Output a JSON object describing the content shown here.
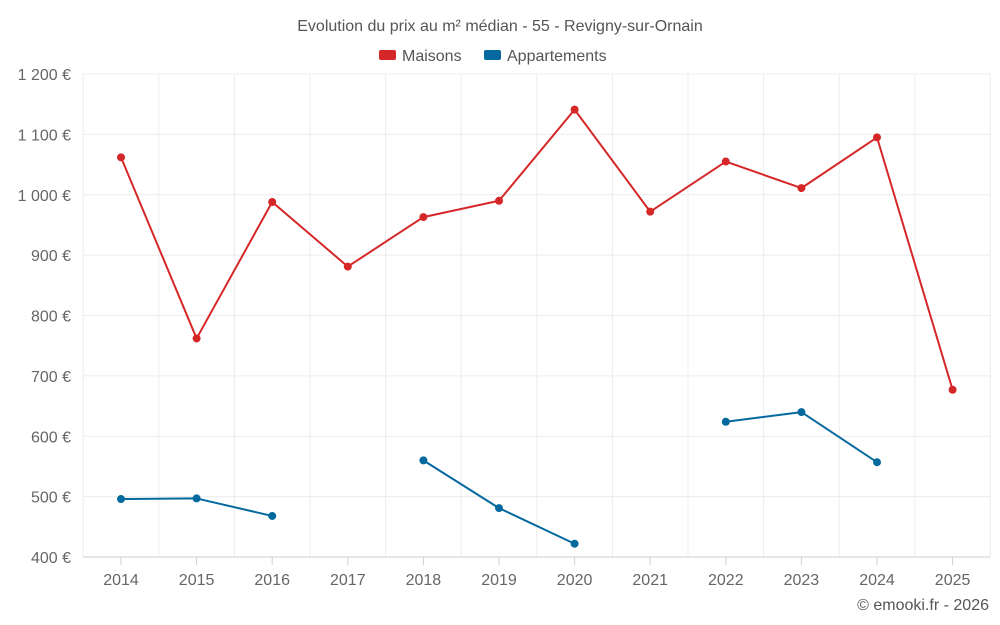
{
  "chart_data": {
    "type": "line",
    "title": "Evolution du prix au m² médian - 55 - Revigny-sur-Ornain",
    "categories": [
      "2014",
      "2015",
      "2016",
      "2017",
      "2018",
      "2019",
      "2020",
      "2021",
      "2022",
      "2023",
      "2024",
      "2025"
    ],
    "series": [
      {
        "name": "Maisons",
        "color": "#d62728",
        "values": [
          1062,
          762,
          988,
          881,
          963,
          990,
          1141,
          972,
          1055,
          1011,
          1095,
          677
        ]
      },
      {
        "name": "Appartements",
        "color": "#04699e",
        "values": [
          496,
          497,
          468,
          null,
          560,
          481,
          422,
          null,
          624,
          640,
          557,
          null
        ]
      }
    ],
    "ylim": [
      400,
      1200
    ],
    "yticks": [
      400,
      500,
      600,
      700,
      800,
      900,
      1000,
      1100,
      1200
    ],
    "ytick_labels": [
      "400 €",
      "500 €",
      "600 €",
      "700 €",
      "800 €",
      "900 €",
      "1 000 €",
      "1 100 €",
      "1 200 €"
    ],
    "xlabel": "",
    "ylabel": "",
    "grid": true,
    "legend_position": "top-center"
  },
  "credit": "© emooki.fr - 2026"
}
